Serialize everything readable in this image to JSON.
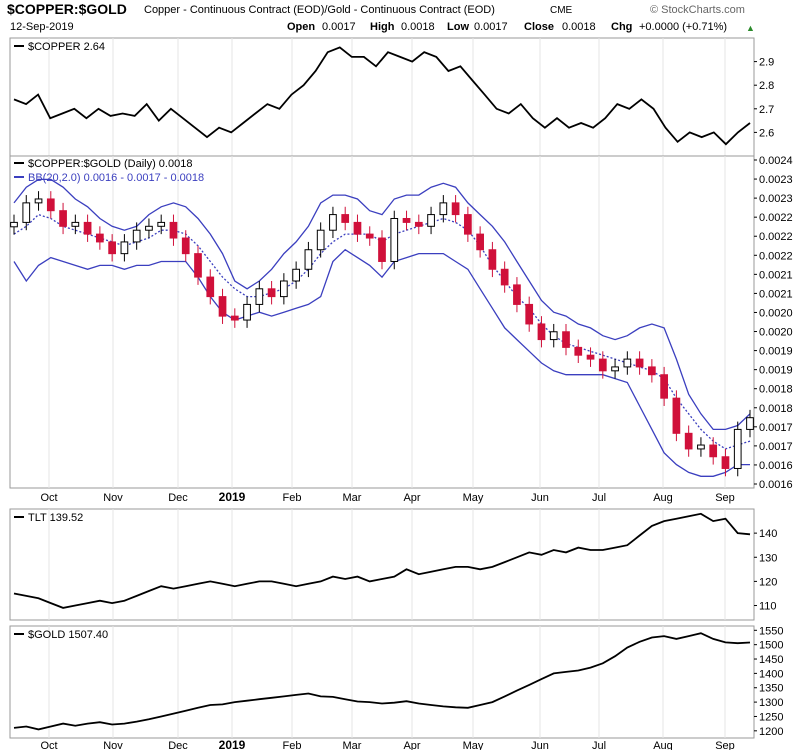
{
  "header": {
    "symbol": "$COPPER:$GOLD",
    "description": "Copper - Continuous Contract (EOD)/Gold - Continuous Contract (EOD)",
    "exchange": "CME",
    "brand": "© StockCharts.com",
    "date": "12-Sep-2019",
    "open_label": "Open",
    "open": "0.0017",
    "high_label": "High",
    "high": "0.0018",
    "low_label": "Low",
    "low": "0.0017",
    "close_label": "Close",
    "close": "0.0018",
    "chg_label": "Chg",
    "chg": "+0.0000 (+0.71%)",
    "chg_marker": "▲"
  },
  "colors": {
    "price_line": "#000000",
    "bollinger": "#3b3fbf",
    "candle_up": "#000000",
    "candle_down": "#d0103a",
    "frame": "#9a9a9a",
    "grid": "#e4e4e4"
  },
  "chart_data": [
    {
      "type": "line",
      "panel": "top",
      "legend": "$COPPER 2.64",
      "series": [
        {
          "name": "$COPPER",
          "values": [
            2.74,
            2.72,
            2.76,
            2.66,
            2.68,
            2.7,
            2.66,
            2.7,
            2.67,
            2.68,
            2.67,
            2.72,
            2.65,
            2.7,
            2.66,
            2.62,
            2.58,
            2.62,
            2.6,
            2.64,
            2.68,
            2.72,
            2.7,
            2.76,
            2.8,
            2.86,
            2.94,
            2.96,
            2.92,
            2.92,
            2.88,
            2.94,
            2.92,
            2.9,
            2.94,
            2.92,
            2.86,
            2.88,
            2.82,
            2.76,
            2.7,
            2.68,
            2.72,
            2.66,
            2.62,
            2.66,
            2.62,
            2.64,
            2.62,
            2.66,
            2.72,
            2.7,
            2.74,
            2.7,
            2.62,
            2.56,
            2.6,
            2.58,
            2.6,
            2.55,
            2.6,
            2.64
          ]
        }
      ],
      "ylim": [
        2.5,
        3.0
      ],
      "yticks": [
        2.6,
        2.7,
        2.8,
        2.9
      ]
    },
    {
      "type": "candlestick",
      "panel": "main",
      "legend": "$COPPER:$GOLD (Daily) 0.0018",
      "overlay_legend": "BB(20,2.0) 0.0016 - 0.0017 - 0.0018",
      "y_ticks": [
        "0.0024",
        "0.0023",
        "0.0023",
        "0.0022",
        "0.0022",
        "0.0022",
        "0.0021",
        "0.0021",
        "0.0020",
        "0.0020",
        "0.0019",
        "0.0019",
        "0.0018",
        "0.0018",
        "0.0017",
        "0.0017",
        "0.0016",
        "0.0016"
      ],
      "ylim": [
        0.00157,
        0.00242
      ],
      "close": [
        0.00225,
        0.0023,
        0.00231,
        0.00228,
        0.00224,
        0.00225,
        0.00222,
        0.0022,
        0.00217,
        0.0022,
        0.00223,
        0.00224,
        0.00225,
        0.00221,
        0.00217,
        0.00211,
        0.00206,
        0.00201,
        0.002,
        0.00204,
        0.00208,
        0.00206,
        0.0021,
        0.00213,
        0.00218,
        0.00223,
        0.00227,
        0.00225,
        0.00222,
        0.00221,
        0.00215,
        0.00226,
        0.00225,
        0.00224,
        0.00227,
        0.0023,
        0.00227,
        0.00222,
        0.00218,
        0.00213,
        0.00209,
        0.00204,
        0.00199,
        0.00195,
        0.00197,
        0.00193,
        0.00191,
        0.0019,
        0.00187,
        0.00188,
        0.0019,
        0.00188,
        0.00186,
        0.0018,
        0.00171,
        0.00167,
        0.00168,
        0.00165,
        0.00162,
        0.00172,
        0.00175
      ],
      "bb_upper": [
        0.0023,
        0.00234,
        0.00236,
        0.00236,
        0.00234,
        0.00231,
        0.00229,
        0.00226,
        0.00224,
        0.00223,
        0.00224,
        0.00227,
        0.00229,
        0.0023,
        0.00229,
        0.00226,
        0.00222,
        0.00217,
        0.0021,
        0.00208,
        0.0021,
        0.00213,
        0.00217,
        0.0022,
        0.00224,
        0.0023,
        0.00232,
        0.00232,
        0.00231,
        0.00228,
        0.00227,
        0.00231,
        0.00232,
        0.00232,
        0.00234,
        0.00235,
        0.00234,
        0.0023,
        0.00227,
        0.00224,
        0.0022,
        0.00215,
        0.0021,
        0.00205,
        0.00202,
        0.00201,
        0.00199,
        0.00198,
        0.00196,
        0.00195,
        0.00196,
        0.00198,
        0.00199,
        0.00198,
        0.0019,
        0.00181,
        0.00176,
        0.00172,
        0.00172,
        0.00173,
        0.00176
      ],
      "bb_middle": [
        0.00222,
        0.00224,
        0.00227,
        0.00226,
        0.00224,
        0.00223,
        0.00222,
        0.00221,
        0.0022,
        0.00219,
        0.0022,
        0.00221,
        0.00223,
        0.00223,
        0.00222,
        0.00219,
        0.00215,
        0.00211,
        0.00208,
        0.00206,
        0.00206,
        0.00207,
        0.00208,
        0.0021,
        0.00213,
        0.00217,
        0.0022,
        0.00222,
        0.00222,
        0.00222,
        0.0022,
        0.00222,
        0.00223,
        0.00224,
        0.00225,
        0.00226,
        0.00225,
        0.00223,
        0.00219,
        0.00214,
        0.0021,
        0.00206,
        0.00203,
        0.00199,
        0.00196,
        0.00194,
        0.00193,
        0.00192,
        0.00191,
        0.0019,
        0.00189,
        0.00188,
        0.00187,
        0.00185,
        0.0018,
        0.00176,
        0.00172,
        0.00169,
        0.00167,
        0.00168,
        0.00169
      ],
      "bb_lower": [
        0.00215,
        0.0021,
        0.00214,
        0.00216,
        0.00215,
        0.00214,
        0.00213,
        0.00214,
        0.00214,
        0.00213,
        0.00214,
        0.00214,
        0.00215,
        0.00215,
        0.00215,
        0.00211,
        0.00206,
        0.00202,
        0.002,
        0.00201,
        0.00202,
        0.00201,
        0.00202,
        0.00203,
        0.00204,
        0.00206,
        0.00215,
        0.00218,
        0.00216,
        0.00214,
        0.00211,
        0.00215,
        0.00216,
        0.00217,
        0.00217,
        0.00217,
        0.00215,
        0.00213,
        0.00208,
        0.00203,
        0.00198,
        0.00195,
        0.00192,
        0.00189,
        0.00187,
        0.00186,
        0.00186,
        0.00186,
        0.00186,
        0.00185,
        0.00184,
        0.00178,
        0.00172,
        0.00166,
        0.00163,
        0.00161,
        0.0016,
        0.0016,
        0.00161,
        0.00163,
        0.00163
      ]
    },
    {
      "type": "line",
      "panel": "middle",
      "legend": "TLT 139.52",
      "series": [
        {
          "name": "TLT",
          "values": [
            115,
            114,
            113,
            111,
            109,
            110,
            111,
            112,
            111,
            112,
            114,
            116,
            118,
            117,
            118,
            119,
            120,
            119,
            118,
            119,
            120,
            120,
            119,
            118,
            119,
            120,
            122,
            121,
            122,
            120,
            121,
            122,
            125,
            123,
            124,
            125,
            126,
            126,
            125,
            126,
            128,
            130,
            132,
            131,
            133,
            132,
            134,
            133,
            133,
            134,
            135,
            139,
            143,
            145,
            146,
            147,
            148,
            145,
            146,
            140,
            139.5
          ]
        }
      ],
      "ylim": [
        104,
        150
      ],
      "yticks": [
        110,
        120,
        130,
        140
      ]
    },
    {
      "type": "line",
      "panel": "bottom",
      "legend": "$GOLD 1507.40",
      "series": [
        {
          "name": "$GOLD",
          "values": [
            1210,
            1215,
            1205,
            1215,
            1225,
            1218,
            1225,
            1230,
            1222,
            1225,
            1232,
            1240,
            1250,
            1260,
            1270,
            1280,
            1290,
            1292,
            1300,
            1305,
            1310,
            1315,
            1320,
            1325,
            1330,
            1320,
            1318,
            1310,
            1302,
            1300,
            1295,
            1298,
            1303,
            1295,
            1290,
            1285,
            1282,
            1280,
            1290,
            1300,
            1320,
            1340,
            1360,
            1380,
            1400,
            1405,
            1410,
            1420,
            1435,
            1460,
            1490,
            1510,
            1525,
            1530,
            1520,
            1530,
            1540,
            1520,
            1508,
            1505,
            1507.4
          ]
        }
      ],
      "ylim": [
        1175,
        1565
      ],
      "yticks": [
        1200,
        1250,
        1300,
        1350,
        1400,
        1450,
        1500,
        1550
      ]
    }
  ],
  "x_axis": {
    "labels": [
      "Oct",
      "Nov",
      "Dec",
      "2019",
      "Feb",
      "Mar",
      "Apr",
      "May",
      "Jun",
      "Jul",
      "Aug",
      "Sep"
    ],
    "bold_labels": [
      "2019"
    ]
  }
}
